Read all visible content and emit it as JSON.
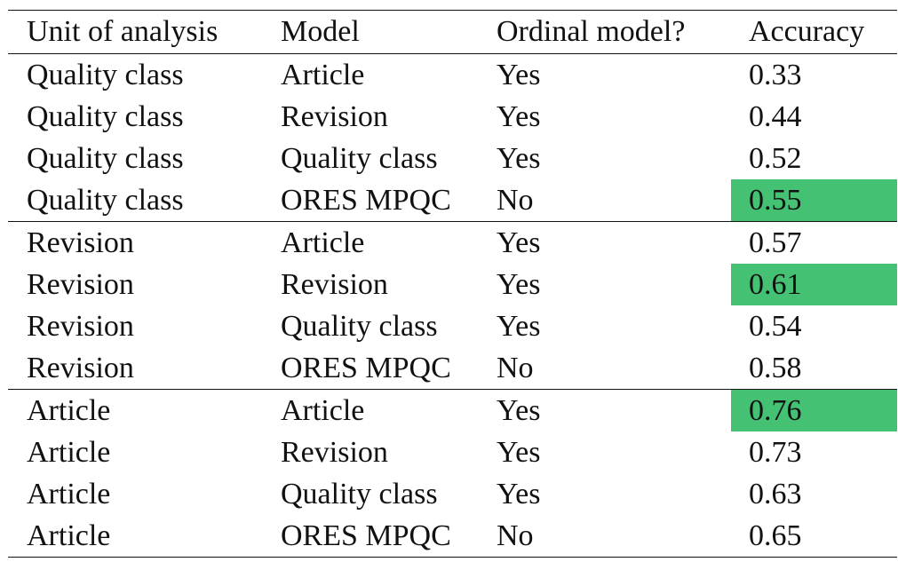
{
  "table": {
    "columns": [
      "Unit of analysis",
      "Model",
      "Ordinal model?",
      "Accuracy"
    ],
    "highlight_color": "#45c174",
    "groups": [
      {
        "rows": [
          {
            "unit": "Quality class",
            "model": "Article",
            "ordinal": "Yes",
            "accuracy": "0.33",
            "best": false
          },
          {
            "unit": "Quality class",
            "model": "Revision",
            "ordinal": "Yes",
            "accuracy": "0.44",
            "best": false
          },
          {
            "unit": "Quality class",
            "model": "Quality class",
            "ordinal": "Yes",
            "accuracy": "0.52",
            "best": false
          },
          {
            "unit": "Quality class",
            "model": "ORES MPQC",
            "ordinal": "No",
            "accuracy": "0.55",
            "best": true
          }
        ]
      },
      {
        "rows": [
          {
            "unit": "Revision",
            "model": "Article",
            "ordinal": "Yes",
            "accuracy": "0.57",
            "best": false
          },
          {
            "unit": "Revision",
            "model": "Revision",
            "ordinal": "Yes",
            "accuracy": "0.61",
            "best": true
          },
          {
            "unit": "Revision",
            "model": "Quality class",
            "ordinal": "Yes",
            "accuracy": "0.54",
            "best": false
          },
          {
            "unit": "Revision",
            "model": "ORES MPQC",
            "ordinal": "No",
            "accuracy": "0.58",
            "best": false
          }
        ]
      },
      {
        "rows": [
          {
            "unit": "Article",
            "model": "Article",
            "ordinal": "Yes",
            "accuracy": "0.76",
            "best": true
          },
          {
            "unit": "Article",
            "model": "Revision",
            "ordinal": "Yes",
            "accuracy": "0.73",
            "best": false
          },
          {
            "unit": "Article",
            "model": "Quality class",
            "ordinal": "Yes",
            "accuracy": "0.63",
            "best": false
          },
          {
            "unit": "Article",
            "model": "ORES MPQC",
            "ordinal": "No",
            "accuracy": "0.65",
            "best": false
          }
        ]
      }
    ]
  }
}
